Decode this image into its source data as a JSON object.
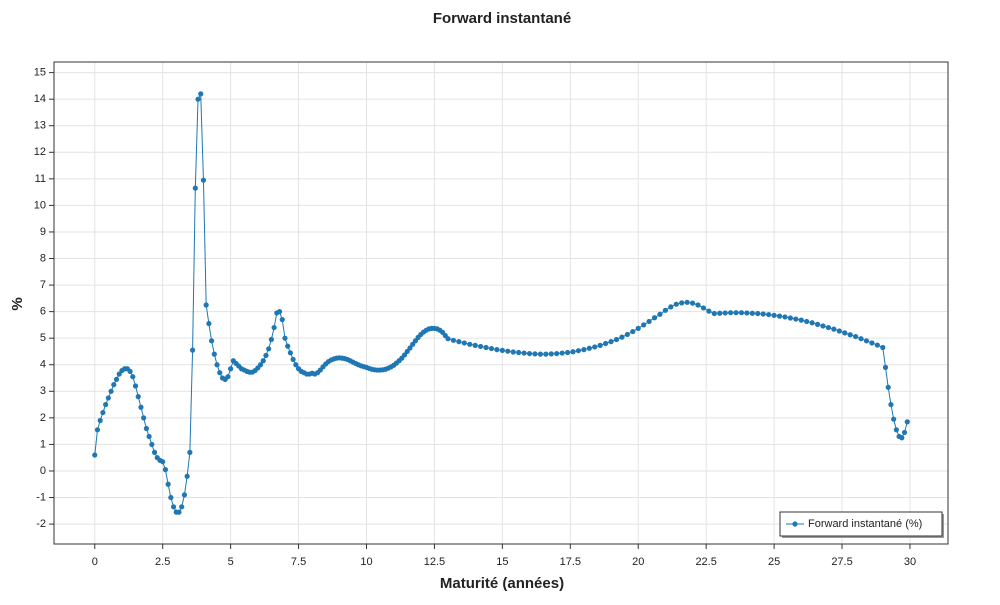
{
  "chart_data": {
    "type": "line",
    "title": "Forward instantané",
    "x_label": "Maturité (années)",
    "y_label": "%",
    "x": [
      0,
      0.1,
      0.2,
      0.3,
      0.4,
      0.5,
      0.6,
      0.7,
      0.8,
      0.9,
      1,
      1.1,
      1.2,
      1.3,
      1.4,
      1.5,
      1.6,
      1.7,
      1.8,
      1.9,
      2,
      2.1,
      2.2,
      2.3,
      2.4,
      2.5,
      2.6,
      2.7,
      2.8,
      2.9,
      3,
      3.1,
      3.2,
      3.3,
      3.4,
      3.5,
      3.6,
      3.7,
      3.8,
      3.9,
      4,
      4.1,
      4.2,
      4.3,
      4.4,
      4.5,
      4.6,
      4.7,
      4.8,
      4.9,
      5,
      5.1,
      5.2,
      5.3,
      5.4,
      5.5,
      5.6,
      5.7,
      5.8,
      5.9,
      6,
      6.1,
      6.2,
      6.3,
      6.4,
      6.5,
      6.6,
      6.7,
      6.8,
      6.9,
      7,
      7.1,
      7.2,
      7.3,
      7.4,
      7.5,
      7.6,
      7.7,
      7.8,
      7.9,
      8,
      8.1,
      8.2,
      8.3,
      8.4,
      8.5,
      8.6,
      8.7,
      8.8,
      8.9,
      9,
      9.1,
      9.2,
      9.3,
      9.4,
      9.5,
      9.6,
      9.7,
      9.8,
      9.9,
      10,
      10.1,
      10.2,
      10.3,
      10.4,
      10.5,
      10.6,
      10.7,
      10.8,
      10.9,
      11,
      11.1,
      11.2,
      11.3,
      11.4,
      11.5,
      11.6,
      11.7,
      11.8,
      11.9,
      12,
      12.1,
      12.2,
      12.3,
      12.4,
      12.5,
      12.6,
      12.7,
      12.8,
      12.9,
      13,
      13.2,
      13.4,
      13.6,
      13.8,
      14,
      14.2,
      14.4,
      14.6,
      14.8,
      15,
      15.2,
      15.4,
      15.6,
      15.8,
      16,
      16.2,
      16.4,
      16.6,
      16.8,
      17,
      17.2,
      17.4,
      17.6,
      17.8,
      18,
      18.2,
      18.4,
      18.6,
      18.8,
      19,
      19.2,
      19.4,
      19.6,
      19.8,
      20,
      20.2,
      20.4,
      20.6,
      20.8,
      21,
      21.2,
      21.4,
      21.6,
      21.8,
      22,
      22.2,
      22.4,
      22.6,
      22.8,
      23,
      23.2,
      23.4,
      23.6,
      23.8,
      24,
      24.2,
      24.4,
      24.6,
      24.8,
      25,
      25.2,
      25.4,
      25.6,
      25.8,
      26,
      26.2,
      26.4,
      26.6,
      26.8,
      27,
      27.2,
      27.4,
      27.6,
      27.8,
      28,
      28.2,
      28.4,
      28.6,
      28.8,
      29,
      29.1,
      29.2,
      29.3,
      29.4,
      29.5,
      29.6,
      29.7,
      29.8,
      29.9
    ],
    "series": [
      {
        "name": "Forward instantané (%)",
        "color": "#1f77b4",
        "values": [
          0.6,
          1.55,
          1.9,
          2.2,
          2.5,
          2.75,
          3.0,
          3.25,
          3.45,
          3.65,
          3.78,
          3.85,
          3.85,
          3.75,
          3.55,
          3.2,
          2.8,
          2.4,
          2.0,
          1.6,
          1.3,
          1.0,
          0.7,
          0.5,
          0.4,
          0.35,
          0.05,
          -0.5,
          -1.0,
          -1.35,
          -1.55,
          -1.55,
          -1.35,
          -0.9,
          -0.2,
          0.7,
          4.55,
          10.65,
          14.0,
          14.2,
          10.95,
          6.25,
          5.55,
          4.9,
          4.4,
          4.0,
          3.7,
          3.5,
          3.45,
          3.55,
          3.85,
          4.15,
          4.05,
          3.95,
          3.85,
          3.8,
          3.75,
          3.72,
          3.72,
          3.78,
          3.88,
          4.0,
          4.15,
          4.35,
          4.6,
          4.95,
          5.4,
          5.95,
          6.0,
          5.7,
          5.0,
          4.7,
          4.45,
          4.2,
          4.0,
          3.85,
          3.75,
          3.7,
          3.65,
          3.65,
          3.68,
          3.65,
          3.7,
          3.8,
          3.92,
          4.03,
          4.12,
          4.18,
          4.22,
          4.25,
          4.26,
          4.25,
          4.23,
          4.2,
          4.15,
          4.1,
          4.05,
          4.0,
          3.96,
          3.93,
          3.9,
          3.86,
          3.83,
          3.81,
          3.8,
          3.8,
          3.81,
          3.83,
          3.87,
          3.92,
          3.98,
          4.06,
          4.15,
          4.25,
          4.37,
          4.5,
          4.63,
          4.77,
          4.9,
          5.03,
          5.14,
          5.23,
          5.3,
          5.35,
          5.37,
          5.37,
          5.35,
          5.3,
          5.22,
          5.1,
          4.98,
          4.92,
          4.87,
          4.82,
          4.77,
          4.73,
          4.69,
          4.65,
          4.61,
          4.57,
          4.54,
          4.51,
          4.48,
          4.46,
          4.44,
          4.42,
          4.41,
          4.4,
          4.4,
          4.41,
          4.42,
          4.44,
          4.46,
          4.49,
          4.53,
          4.57,
          4.62,
          4.67,
          4.73,
          4.8,
          4.87,
          4.95,
          5.04,
          5.14,
          5.25,
          5.37,
          5.5,
          5.63,
          5.77,
          5.9,
          6.05,
          6.18,
          6.28,
          6.33,
          6.35,
          6.32,
          6.25,
          6.14,
          6.02,
          5.93,
          5.94,
          5.95,
          5.96,
          5.96,
          5.96,
          5.95,
          5.94,
          5.93,
          5.91,
          5.89,
          5.86,
          5.83,
          5.8,
          5.76,
          5.72,
          5.68,
          5.63,
          5.58,
          5.52,
          5.46,
          5.4,
          5.34,
          5.27,
          5.2,
          5.13,
          5.06,
          4.98,
          4.9,
          4.82,
          4.74,
          4.65,
          3.9,
          3.15,
          2.5,
          1.95,
          1.55,
          1.3,
          1.25,
          1.45,
          1.85
        ]
      }
    ],
    "xlim": [
      -1.5,
      31.4
    ],
    "ylim": [
      -2.75,
      15.4
    ],
    "xticks": [
      0,
      2.5,
      5,
      7.5,
      10,
      12.5,
      15,
      17.5,
      20,
      22.5,
      25,
      27.5,
      30
    ],
    "yticks": [
      -2,
      -1,
      0,
      1,
      2,
      3,
      4,
      5,
      6,
      7,
      8,
      9,
      10,
      11,
      12,
      13,
      14,
      15
    ],
    "grid": true,
    "legend": "lower-right"
  }
}
